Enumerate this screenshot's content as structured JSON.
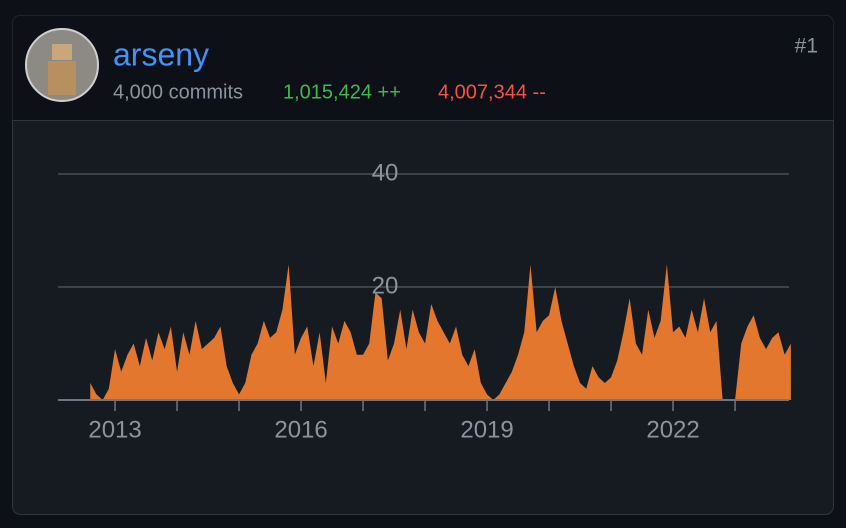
{
  "header": {
    "name": "arseny",
    "commits": "4,000 commits",
    "additions": "1,015,424 ++",
    "deletions": "4,007,344 --",
    "rank": "#1"
  },
  "chart_data": {
    "type": "area",
    "color": "#e3772d",
    "x": [
      2012.6,
      2012.7,
      2012.8,
      2012.9,
      2013.0,
      2013.1,
      2013.2,
      2013.3,
      2013.4,
      2013.5,
      2013.6,
      2013.7,
      2013.8,
      2013.9,
      2014.0,
      2014.1,
      2014.2,
      2014.3,
      2014.4,
      2014.5,
      2014.6,
      2014.7,
      2014.8,
      2014.9,
      2015.0,
      2015.1,
      2015.2,
      2015.3,
      2015.4,
      2015.5,
      2015.6,
      2015.7,
      2015.8,
      2015.9,
      2016.0,
      2016.1,
      2016.2,
      2016.3,
      2016.4,
      2016.5,
      2016.6,
      2016.7,
      2016.8,
      2016.9,
      2017.0,
      2017.1,
      2017.2,
      2017.3,
      2017.4,
      2017.5,
      2017.6,
      2017.7,
      2017.8,
      2017.9,
      2018.0,
      2018.1,
      2018.2,
      2018.3,
      2018.4,
      2018.5,
      2018.6,
      2018.7,
      2018.8,
      2018.9,
      2019.0,
      2019.1,
      2019.2,
      2019.3,
      2019.4,
      2019.5,
      2019.6,
      2019.7,
      2019.8,
      2019.9,
      2020.0,
      2020.1,
      2020.2,
      2020.3,
      2020.4,
      2020.5,
      2020.6,
      2020.7,
      2020.8,
      2020.9,
      2021.0,
      2021.1,
      2021.2,
      2021.3,
      2021.4,
      2021.5,
      2021.6,
      2021.7,
      2021.8,
      2021.9,
      2022.0,
      2022.1,
      2022.2,
      2022.3,
      2022.4,
      2022.5,
      2022.6,
      2022.7,
      2022.8,
      2022.9,
      2023.0,
      2023.1,
      2023.2,
      2023.3,
      2023.4,
      2023.5,
      2023.6,
      2023.7,
      2023.8,
      2023.9
    ],
    "values": [
      3,
      1,
      0,
      2,
      9,
      5,
      8,
      10,
      6,
      11,
      7,
      12,
      9,
      13,
      5,
      12,
      8,
      14,
      9,
      10,
      11,
      13,
      6,
      3,
      1,
      3,
      8,
      10,
      14,
      11,
      12,
      16,
      24,
      8,
      11,
      13,
      6,
      12,
      3,
      13,
      10,
      14,
      12,
      8,
      8,
      10,
      19,
      18,
      7,
      10,
      16,
      9,
      16,
      12,
      10,
      17,
      14,
      12,
      10,
      13,
      8,
      6,
      9,
      3,
      1,
      0,
      1,
      3,
      5,
      8,
      12,
      24,
      12,
      14,
      15,
      20,
      14,
      10,
      6,
      3,
      2,
      6,
      4,
      3,
      4,
      7,
      12,
      18,
      10,
      8,
      16,
      11,
      14,
      24,
      12,
      13,
      11,
      16,
      12,
      18,
      12,
      14,
      0,
      0,
      0,
      10,
      13,
      15,
      11,
      9,
      11,
      12,
      8,
      10
    ],
    "xlim": [
      2012.08,
      2023.87
    ],
    "xticks": [
      2013,
      2016,
      2019,
      2022
    ],
    "x_minor_ticks": [
      2014,
      2015,
      2017,
      2018,
      2020,
      2021,
      2023
    ],
    "ylim": [
      0,
      40
    ],
    "yticks": [
      20,
      40
    ],
    "grid": true
  }
}
